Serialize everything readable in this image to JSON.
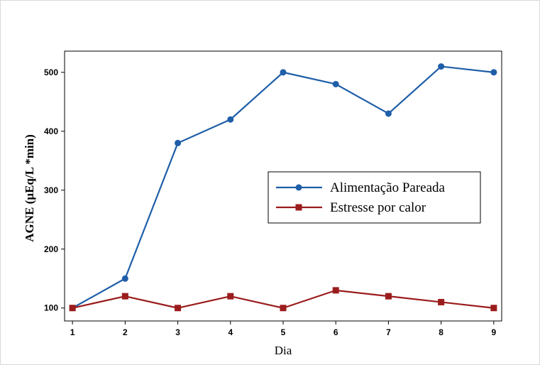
{
  "chart_data": {
    "type": "line",
    "title": "",
    "xlabel": "Dia",
    "ylabel": "AGNE (µEq/L *min)",
    "x": [
      1,
      2,
      3,
      4,
      5,
      6,
      7,
      8,
      9
    ],
    "x_ticks": [
      "1",
      "2",
      "3",
      "4",
      "5",
      "6",
      "7",
      "8",
      "9"
    ],
    "y_ticks": [
      100,
      200,
      300,
      400,
      500
    ],
    "ylim": [
      78,
      536
    ],
    "xlim": [
      0.85,
      9.15
    ],
    "grid": false,
    "legend_position": "center-right",
    "series": [
      {
        "name": "Alimentação Pareada",
        "values": [
          100,
          150,
          380,
          420,
          500,
          480,
          430,
          510,
          500
        ],
        "color": "#1f5ea8",
        "marker": "circle"
      },
      {
        "name": "Estresse por calor",
        "values": [
          100,
          120,
          100,
          120,
          100,
          130,
          120,
          110,
          100
        ],
        "color": "#9b1c1c",
        "marker": "square"
      }
    ]
  }
}
